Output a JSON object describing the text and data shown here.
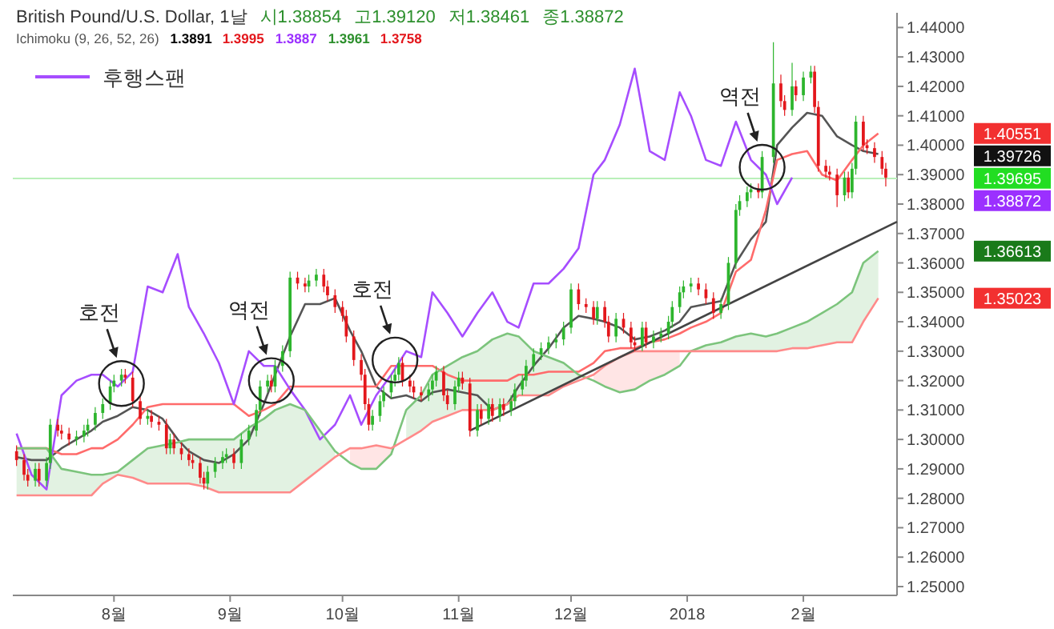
{
  "chart_data": {
    "type": "candlestick",
    "title": "British Pound/U.S. Dollar, 1날",
    "subtitle": "Ichimoku (9, 26, 52, 26)",
    "x": [
      "2017-07-06",
      "2017-07-08",
      "2017-07-09",
      "2017-07-11",
      "2017-07-12",
      "2017-07-14",
      "2017-07-15",
      "2017-07-17",
      "2017-07-18",
      "2017-07-20",
      "2017-07-22",
      "2017-07-24",
      "2017-07-25",
      "2017-07-27",
      "2017-07-29",
      "2017-07-31",
      "2017-08-01",
      "2017-08-03",
      "2017-08-04",
      "2017-08-06",
      "2017-08-08",
      "2017-08-10",
      "2017-08-11",
      "2017-08-13",
      "2017-08-15",
      "2017-08-16",
      "2017-08-17",
      "2017-08-19",
      "2017-08-21",
      "2017-08-22",
      "2017-08-24",
      "2017-08-25",
      "2017-08-26",
      "2017-08-28",
      "2017-08-30",
      "2017-08-31",
      "2017-09-02",
      "2017-09-04",
      "2017-09-06",
      "2017-09-08",
      "2017-09-09",
      "2017-09-11",
      "2017-09-12",
      "2017-09-13",
      "2017-09-15",
      "2017-09-17",
      "2017-09-19",
      "2017-09-21",
      "2017-09-22",
      "2017-09-24",
      "2017-09-26",
      "2017-09-27",
      "2017-09-29",
      "2017-10-01",
      "2017-10-02",
      "2017-10-04",
      "2017-10-06",
      "2017-10-07",
      "2017-10-08",
      "2017-10-09",
      "2017-10-11",
      "2017-10-12",
      "2017-10-14",
      "2017-10-15",
      "2017-10-16",
      "2017-10-17",
      "2017-10-19",
      "2017-10-20",
      "2017-10-22",
      "2017-10-24",
      "2017-10-25",
      "2017-10-26",
      "2017-10-28",
      "2017-10-29",
      "2017-10-31",
      "2017-11-01",
      "2017-11-02",
      "2017-11-04",
      "2017-11-06",
      "2017-11-07",
      "2017-11-09",
      "2017-11-10",
      "2017-11-12",
      "2017-11-13",
      "2017-11-15",
      "2017-11-16",
      "2017-11-18",
      "2017-11-19",
      "2017-11-21",
      "2017-11-23",
      "2017-11-25",
      "2017-11-27",
      "2017-11-29",
      "2017-12-01",
      "2017-12-03",
      "2017-12-05",
      "2017-12-07",
      "2017-12-08",
      "2017-12-10",
      "2017-12-11",
      "2017-12-13",
      "2017-12-15",
      "2017-12-17",
      "2017-12-18",
      "2017-12-20",
      "2017-12-21",
      "2017-12-23",
      "2017-12-25",
      "2017-12-27",
      "2017-12-28",
      "2017-12-30",
      "2017-12-31",
      "2018-01-02",
      "2018-01-04",
      "2018-01-06",
      "2018-01-08",
      "2018-01-10",
      "2018-01-12",
      "2018-01-14",
      "2018-01-15",
      "2018-01-17",
      "2018-01-18",
      "2018-01-20",
      "2018-01-21",
      "2018-01-24",
      "2018-01-26",
      "2018-01-27",
      "2018-01-29",
      "2018-01-30",
      "2018-02-01",
      "2018-02-03",
      "2018-02-04",
      "2018-02-05",
      "2018-02-07",
      "2018-02-08",
      "2018-02-10",
      "2018-02-12",
      "2018-02-13",
      "2018-02-14",
      "2018-02-15",
      "2018-02-17",
      "2018-02-18",
      "2018-02-20",
      "2018-02-22",
      "2018-02-23"
    ],
    "ohlc": [
      [
        1.296,
        1.298,
        1.291,
        1.293
      ],
      [
        1.293,
        1.295,
        1.286,
        1.288
      ],
      [
        1.288,
        1.29,
        1.284,
        1.286
      ],
      [
        1.286,
        1.292,
        1.284,
        1.29
      ],
      [
        1.29,
        1.292,
        1.284,
        1.286
      ],
      [
        1.286,
        1.294,
        1.284,
        1.292
      ],
      [
        1.292,
        1.307,
        1.29,
        1.305
      ],
      [
        1.305,
        1.307,
        1.301,
        1.303
      ],
      [
        1.303,
        1.305,
        1.3,
        1.302
      ],
      [
        1.302,
        1.304,
        1.298,
        1.3
      ],
      [
        1.3,
        1.303,
        1.298,
        1.301
      ],
      [
        1.301,
        1.305,
        1.299,
        1.303
      ],
      [
        1.303,
        1.307,
        1.301,
        1.305
      ],
      [
        1.305,
        1.311,
        1.303,
        1.309
      ],
      [
        1.309,
        1.314,
        1.307,
        1.312
      ],
      [
        1.312,
        1.32,
        1.31,
        1.318
      ],
      [
        1.318,
        1.322,
        1.316,
        1.32
      ],
      [
        1.32,
        1.324,
        1.318,
        1.322
      ],
      [
        1.322,
        1.324,
        1.319,
        1.321
      ],
      [
        1.321,
        1.323,
        1.311,
        1.313
      ],
      [
        1.313,
        1.315,
        1.305,
        1.307
      ],
      [
        1.307,
        1.31,
        1.305,
        1.308
      ],
      [
        1.308,
        1.31,
        1.304,
        1.306
      ],
      [
        1.306,
        1.308,
        1.303,
        1.305
      ],
      [
        1.305,
        1.307,
        1.295,
        1.297
      ],
      [
        1.297,
        1.302,
        1.295,
        1.3
      ],
      [
        1.3,
        1.302,
        1.295,
        1.297
      ],
      [
        1.297,
        1.299,
        1.293,
        1.295
      ],
      [
        1.295,
        1.297,
        1.291,
        1.293
      ],
      [
        1.293,
        1.295,
        1.29,
        1.292
      ],
      [
        1.292,
        1.294,
        1.285,
        1.287
      ],
      [
        1.287,
        1.289,
        1.283,
        1.285
      ],
      [
        1.285,
        1.291,
        1.283,
        1.289
      ],
      [
        1.289,
        1.294,
        1.287,
        1.292
      ],
      [
        1.292,
        1.296,
        1.29,
        1.294
      ],
      [
        1.294,
        1.297,
        1.292,
        1.295
      ],
      [
        1.295,
        1.297,
        1.29,
        1.292
      ],
      [
        1.292,
        1.302,
        1.29,
        1.3
      ],
      [
        1.3,
        1.305,
        1.298,
        1.303
      ],
      [
        1.303,
        1.312,
        1.301,
        1.31
      ],
      [
        1.31,
        1.32,
        1.308,
        1.318
      ],
      [
        1.318,
        1.322,
        1.316,
        1.32
      ],
      [
        1.32,
        1.322,
        1.316,
        1.318
      ],
      [
        1.318,
        1.327,
        1.316,
        1.325
      ],
      [
        1.325,
        1.332,
        1.323,
        1.33
      ],
      [
        1.33,
        1.357,
        1.328,
        1.355
      ],
      [
        1.355,
        1.357,
        1.351,
        1.353
      ],
      [
        1.353,
        1.355,
        1.35,
        1.352
      ],
      [
        1.352,
        1.356,
        1.35,
        1.354
      ],
      [
        1.354,
        1.358,
        1.352,
        1.356
      ],
      [
        1.356,
        1.358,
        1.35,
        1.352
      ],
      [
        1.352,
        1.354,
        1.347,
        1.349
      ],
      [
        1.349,
        1.351,
        1.343,
        1.345
      ],
      [
        1.345,
        1.347,
        1.34,
        1.342
      ],
      [
        1.342,
        1.344,
        1.333,
        1.335
      ],
      [
        1.335,
        1.337,
        1.325,
        1.327
      ],
      [
        1.327,
        1.329,
        1.32,
        1.322
      ],
      [
        1.322,
        1.324,
        1.31,
        1.312
      ],
      [
        1.312,
        1.314,
        1.303,
        1.305
      ],
      [
        1.305,
        1.31,
        1.303,
        1.308
      ],
      [
        1.308,
        1.315,
        1.306,
        1.313
      ],
      [
        1.313,
        1.318,
        1.311,
        1.316
      ],
      [
        1.316,
        1.322,
        1.314,
        1.32
      ],
      [
        1.32,
        1.324,
        1.318,
        1.322
      ],
      [
        1.322,
        1.328,
        1.32,
        1.326
      ],
      [
        1.326,
        1.328,
        1.318,
        1.32
      ],
      [
        1.32,
        1.322,
        1.316,
        1.318
      ],
      [
        1.318,
        1.32,
        1.314,
        1.316
      ],
      [
        1.316,
        1.318,
        1.313,
        1.315
      ],
      [
        1.315,
        1.319,
        1.313,
        1.317
      ],
      [
        1.317,
        1.322,
        1.315,
        1.32
      ],
      [
        1.32,
        1.325,
        1.318,
        1.323
      ],
      [
        1.323,
        1.325,
        1.313,
        1.315
      ],
      [
        1.315,
        1.317,
        1.31,
        1.312
      ],
      [
        1.312,
        1.32,
        1.31,
        1.318
      ],
      [
        1.318,
        1.323,
        1.316,
        1.321
      ],
      [
        1.321,
        1.323,
        1.317,
        1.319
      ],
      [
        1.319,
        1.321,
        1.301,
        1.303
      ],
      [
        1.303,
        1.312,
        1.301,
        1.31
      ],
      [
        1.31,
        1.312,
        1.305,
        1.307
      ],
      [
        1.307,
        1.314,
        1.305,
        1.312
      ],
      [
        1.312,
        1.314,
        1.306,
        1.308
      ],
      [
        1.308,
        1.314,
        1.306,
        1.312
      ],
      [
        1.312,
        1.314,
        1.308,
        1.31
      ],
      [
        1.31,
        1.315,
        1.308,
        1.313
      ],
      [
        1.313,
        1.319,
        1.311,
        1.317
      ],
      [
        1.317,
        1.322,
        1.315,
        1.32
      ],
      [
        1.32,
        1.327,
        1.318,
        1.325
      ],
      [
        1.325,
        1.331,
        1.323,
        1.329
      ],
      [
        1.329,
        1.333,
        1.327,
        1.331
      ],
      [
        1.331,
        1.335,
        1.329,
        1.333
      ],
      [
        1.333,
        1.336,
        1.331,
        1.334
      ],
      [
        1.334,
        1.34,
        1.332,
        1.338
      ],
      [
        1.338,
        1.353,
        1.336,
        1.351
      ],
      [
        1.351,
        1.353,
        1.344,
        1.346
      ],
      [
        1.346,
        1.348,
        1.343,
        1.345
      ],
      [
        1.345,
        1.347,
        1.339,
        1.341
      ],
      [
        1.341,
        1.347,
        1.339,
        1.345
      ],
      [
        1.345,
        1.347,
        1.338,
        1.34
      ],
      [
        1.34,
        1.342,
        1.333,
        1.335
      ],
      [
        1.335,
        1.343,
        1.333,
        1.341
      ],
      [
        1.341,
        1.343,
        1.336,
        1.338
      ],
      [
        1.338,
        1.34,
        1.331,
        1.333
      ],
      [
        1.333,
        1.335,
        1.33,
        1.332
      ],
      [
        1.332,
        1.34,
        1.33,
        1.338
      ],
      [
        1.338,
        1.34,
        1.331,
        1.333
      ],
      [
        1.333,
        1.337,
        1.331,
        1.335
      ],
      [
        1.335,
        1.338,
        1.333,
        1.336
      ],
      [
        1.336,
        1.342,
        1.334,
        1.34
      ],
      [
        1.34,
        1.347,
        1.338,
        1.345
      ],
      [
        1.345,
        1.352,
        1.343,
        1.35
      ],
      [
        1.35,
        1.354,
        1.348,
        1.352
      ],
      [
        1.352,
        1.355,
        1.35,
        1.353
      ],
      [
        1.353,
        1.355,
        1.349,
        1.351
      ],
      [
        1.351,
        1.353,
        1.346,
        1.348
      ],
      [
        1.348,
        1.35,
        1.341,
        1.343
      ],
      [
        1.343,
        1.348,
        1.341,
        1.346
      ],
      [
        1.346,
        1.362,
        1.344,
        1.36
      ],
      [
        1.36,
        1.38,
        1.358,
        1.378
      ],
      [
        1.378,
        1.383,
        1.376,
        1.381
      ],
      [
        1.381,
        1.386,
        1.379,
        1.384
      ],
      [
        1.384,
        1.387,
        1.382,
        1.385
      ],
      [
        1.385,
        1.387,
        1.382,
        1.384
      ],
      [
        1.384,
        1.398,
        1.382,
        1.396
      ],
      [
        1.396,
        1.435,
        1.394,
        1.421
      ],
      [
        1.421,
        1.424,
        1.413,
        1.415
      ],
      [
        1.415,
        1.417,
        1.41,
        1.412
      ],
      [
        1.412,
        1.428,
        1.41,
        1.42
      ],
      [
        1.42,
        1.422,
        1.415,
        1.417
      ],
      [
        1.417,
        1.425,
        1.415,
        1.423
      ],
      [
        1.423,
        1.427,
        1.421,
        1.425
      ],
      [
        1.425,
        1.427,
        1.411,
        1.413
      ],
      [
        1.413,
        1.415,
        1.391,
        1.393
      ],
      [
        1.393,
        1.395,
        1.389,
        1.391
      ],
      [
        1.391,
        1.393,
        1.388,
        1.39
      ],
      [
        1.39,
        1.392,
        1.379,
        1.383
      ],
      [
        1.383,
        1.391,
        1.381,
        1.389
      ],
      [
        1.389,
        1.391,
        1.382,
        1.384
      ],
      [
        1.384,
        1.394,
        1.382,
        1.392
      ],
      [
        1.392,
        1.41,
        1.39,
        1.408
      ],
      [
        1.408,
        1.41,
        1.398,
        1.4
      ],
      [
        1.4,
        1.402,
        1.397,
        1.399
      ],
      [
        1.399,
        1.401,
        1.394,
        1.396
      ],
      [
        1.396,
        1.398,
        1.39,
        1.392
      ],
      [
        1.392,
        1.394,
        1.386,
        1.389
      ]
    ],
    "series": [
      {
        "type": "line",
        "color": "#555555",
        "x": [
          "2017-07-06",
          "2017-07-10",
          "2017-07-14",
          "2017-07-18",
          "2017-07-22",
          "2017-07-26",
          "2017-07-29",
          "2017-08-02",
          "2017-08-06",
          "2017-08-10",
          "2017-08-14",
          "2017-08-18",
          "2017-08-21",
          "2017-08-25",
          "2017-08-29",
          "2017-09-02",
          "2017-09-06",
          "2017-09-10",
          "2017-09-13",
          "2017-09-17",
          "2017-09-21",
          "2017-09-25",
          "2017-09-29",
          "2017-10-03",
          "2017-10-06",
          "2017-10-10",
          "2017-10-14",
          "2017-10-18",
          "2017-10-22",
          "2017-10-25",
          "2017-10-29",
          "2017-11-02",
          "2017-11-06",
          "2017-11-10",
          "2017-11-14",
          "2017-11-17",
          "2017-11-21",
          "2017-11-25",
          "2017-11-29",
          "2017-12-03",
          "2017-12-07",
          "2017-12-10",
          "2017-12-14",
          "2017-12-18",
          "2017-12-22",
          "2017-12-26",
          "2017-12-30",
          "2018-01-02",
          "2018-01-06",
          "2018-01-10",
          "2018-01-14",
          "2018-01-18",
          "2018-01-22",
          "2018-01-25",
          "2018-01-29",
          "2018-02-02",
          "2018-02-06",
          "2018-02-10",
          "2018-02-14",
          "2018-02-17",
          "2018-02-21"
        ],
        "values": [
          1.294,
          1.293,
          1.293,
          1.297,
          1.3,
          1.303,
          1.306,
          1.308,
          1.311,
          1.31,
          1.307,
          1.3,
          1.296,
          1.293,
          1.292,
          1.295,
          1.3,
          1.312,
          1.322,
          1.335,
          1.346,
          1.346,
          1.348,
          1.337,
          1.33,
          1.318,
          1.314,
          1.315,
          1.313,
          1.316,
          1.317,
          1.316,
          1.315,
          1.31,
          1.312,
          1.318,
          1.325,
          1.331,
          1.338,
          1.342,
          1.341,
          1.34,
          1.338,
          1.334,
          1.335,
          1.337,
          1.34,
          1.345,
          1.346,
          1.347,
          1.36,
          1.368,
          1.374,
          1.4,
          1.406,
          1.411,
          1.41,
          1.403,
          1.4,
          1.398,
          1.397
        ]
      },
      {
        "type": "line",
        "color": "#ff6b6b",
        "x": [
          "2017-07-06",
          "2017-07-10",
          "2017-07-14",
          "2017-07-18",
          "2017-07-22",
          "2017-07-26",
          "2017-07-29",
          "2017-08-02",
          "2017-08-06",
          "2017-08-10",
          "2017-08-14",
          "2017-08-18",
          "2017-08-21",
          "2017-08-25",
          "2017-08-29",
          "2017-09-02",
          "2017-09-06",
          "2017-09-10",
          "2017-09-13",
          "2017-09-17",
          "2017-09-21",
          "2017-09-25",
          "2017-09-29",
          "2017-10-03",
          "2017-10-06",
          "2017-10-10",
          "2017-10-14",
          "2017-10-18",
          "2017-10-22",
          "2017-10-25",
          "2017-10-29",
          "2017-11-02",
          "2017-11-06",
          "2017-11-10",
          "2017-11-14",
          "2017-11-17",
          "2017-11-21",
          "2017-11-25",
          "2017-11-29",
          "2017-12-03",
          "2017-12-07",
          "2017-12-10",
          "2017-12-14",
          "2017-12-18",
          "2017-12-22",
          "2017-12-26",
          "2017-12-30",
          "2018-01-02",
          "2018-01-06",
          "2018-01-10",
          "2018-01-14",
          "2018-01-18",
          "2018-01-22",
          "2018-01-25",
          "2018-01-29",
          "2018-02-02",
          "2018-02-06",
          "2018-02-10",
          "2018-02-14",
          "2018-02-17",
          "2018-02-21"
        ],
        "values": [
          1.297,
          1.297,
          1.297,
          1.295,
          1.295,
          1.297,
          1.297,
          1.3,
          1.305,
          1.311,
          1.312,
          1.312,
          1.312,
          1.312,
          1.312,
          1.312,
          1.308,
          1.31,
          1.312,
          1.318,
          1.318,
          1.318,
          1.318,
          1.318,
          1.318,
          1.318,
          1.325,
          1.325,
          1.325,
          1.325,
          1.322,
          1.32,
          1.32,
          1.32,
          1.32,
          1.322,
          1.322,
          1.323,
          1.323,
          1.323,
          1.326,
          1.33,
          1.331,
          1.331,
          1.333,
          1.334,
          1.336,
          1.338,
          1.34,
          1.343,
          1.357,
          1.361,
          1.378,
          1.395,
          1.397,
          1.398,
          1.39,
          1.388,
          1.395,
          1.4,
          1.404
        ]
      },
      {
        "type": "line",
        "name": "후행스팬",
        "color": "#a64dff",
        "x": [
          "2017-07-06",
          "2017-07-10",
          "2017-07-14",
          "2017-07-18",
          "2017-07-22",
          "2017-07-26",
          "2017-07-29",
          "2017-08-02",
          "2017-08-06",
          "2017-08-10",
          "2017-08-14",
          "2017-08-18",
          "2017-08-21",
          "2017-08-25",
          "2017-08-29",
          "2017-09-02",
          "2017-09-06",
          "2017-09-10",
          "2017-09-13",
          "2017-09-17",
          "2017-09-21",
          "2017-09-25",
          "2017-09-29",
          "2017-10-03",
          "2017-10-06",
          "2017-10-10",
          "2017-10-14",
          "2017-10-18",
          "2017-10-22",
          "2017-10-25",
          "2017-10-29",
          "2017-11-02",
          "2017-11-06",
          "2017-11-10",
          "2017-11-14",
          "2017-11-17",
          "2017-11-21",
          "2017-11-25",
          "2017-11-29",
          "2017-12-03",
          "2017-12-07",
          "2017-12-10",
          "2017-12-14",
          "2017-12-18",
          "2017-12-22",
          "2017-12-26",
          "2017-12-30",
          "2018-01-02",
          "2018-01-06",
          "2018-01-10",
          "2018-01-14",
          "2018-01-18",
          "2018-01-22",
          "2018-01-25",
          "2018-01-29"
        ],
        "values": [
          1.302,
          1.288,
          1.283,
          1.315,
          1.32,
          1.322,
          1.322,
          1.318,
          1.323,
          1.352,
          1.35,
          1.363,
          1.345,
          1.336,
          1.326,
          1.312,
          1.33,
          1.325,
          1.325,
          1.317,
          1.31,
          1.3,
          1.305,
          1.315,
          1.305,
          1.315,
          1.322,
          1.33,
          1.328,
          1.35,
          1.343,
          1.335,
          1.343,
          1.35,
          1.34,
          1.338,
          1.353,
          1.353,
          1.358,
          1.365,
          1.39,
          1.395,
          1.407,
          1.426,
          1.398,
          1.395,
          1.418,
          1.41,
          1.395,
          1.393,
          1.408,
          1.395,
          1.39,
          1.38,
          1.389
        ]
      },
      {
        "type": "line",
        "color": "#7cc47c",
        "lower": [
          1.281,
          1.281,
          1.281,
          1.281,
          1.281,
          1.281,
          1.285,
          1.288,
          1.287,
          1.285,
          1.285,
          1.285,
          1.285,
          1.284,
          1.282,
          1.282,
          1.282,
          1.282,
          1.282,
          1.282,
          1.286,
          1.29,
          1.294,
          null,
          null,
          null,
          null,
          1.3,
          1.303,
          1.306,
          1.308,
          1.31,
          1.31,
          1.31,
          1.312,
          1.315,
          1.315,
          1.315,
          1.318,
          1.32,
          null,
          null,
          null,
          null,
          null,
          null,
          null,
          1.33,
          1.33,
          1.33,
          1.33,
          1.33,
          1.33,
          1.33,
          1.331,
          1.331,
          1.332,
          1.333,
          1.333,
          1.34,
          1.348
        ],
        "upper": [
          1.297,
          1.297,
          1.297,
          1.29,
          1.289,
          1.288,
          1.288,
          1.289,
          1.293,
          1.297,
          1.298,
          1.299,
          1.3,
          1.3,
          1.3,
          1.3,
          1.304,
          1.307,
          1.31,
          1.312,
          1.31,
          1.303,
          1.296,
          null,
          null,
          null,
          null,
          1.31,
          1.315,
          1.322,
          1.325,
          1.328,
          1.33,
          1.334,
          1.336,
          1.335,
          1.33,
          1.328,
          1.326,
          1.322,
          null,
          null,
          null,
          null,
          null,
          null,
          null,
          1.33,
          1.332,
          1.333,
          1.335,
          1.336,
          1.335,
          1.336,
          1.338,
          1.34,
          1.343,
          1.346,
          1.35,
          1.36,
          1.364
        ],
        "x": [
          "2017-07-06",
          "2017-07-10",
          "2017-07-14",
          "2017-07-18",
          "2017-07-22",
          "2017-07-26",
          "2017-07-29",
          "2017-08-02",
          "2017-08-06",
          "2017-08-10",
          "2017-08-14",
          "2017-08-18",
          "2017-08-21",
          "2017-08-25",
          "2017-08-29",
          "2017-09-02",
          "2017-09-06",
          "2017-09-10",
          "2017-09-13",
          "2017-09-17",
          "2017-09-21",
          "2017-09-25",
          "2017-09-29",
          "2017-10-03",
          "2017-10-06",
          "2017-10-10",
          "2017-10-14",
          "2017-10-18",
          "2017-10-22",
          "2017-10-25",
          "2017-10-29",
          "2017-11-02",
          "2017-11-06",
          "2017-11-10",
          "2017-11-14",
          "2017-11-17",
          "2017-11-21",
          "2017-11-25",
          "2017-11-29",
          "2017-12-03",
          "2017-12-07",
          "2017-12-10",
          "2017-12-14",
          "2017-12-18",
          "2017-12-22",
          "2017-12-26",
          "2017-12-30",
          "2018-01-02",
          "2018-01-06",
          "2018-01-10",
          "2018-01-14",
          "2018-01-18",
          "2018-01-22",
          "2018-01-25",
          "2018-01-29",
          "2018-02-02",
          "2018-02-06",
          "2018-02-10",
          "2018-02-14",
          "2018-02-17",
          "2018-02-21"
        ],
        "values": [
          1.297,
          1.297,
          1.297,
          1.29,
          1.289,
          1.288,
          1.288,
          1.289,
          1.293,
          1.297,
          1.298,
          1.299,
          1.3,
          1.3,
          1.3,
          1.3,
          1.304,
          1.307,
          1.31,
          1.312,
          1.31,
          1.303,
          1.296,
          1.292,
          1.29,
          1.29,
          1.295,
          1.31,
          1.315,
          1.322,
          1.325,
          1.328,
          1.33,
          1.334,
          1.336,
          1.335,
          1.33,
          1.328,
          1.326,
          1.322,
          1.32,
          1.318,
          1.316,
          1.317,
          1.32,
          1.322,
          1.325,
          1.33,
          1.332,
          1.333,
          1.335,
          1.336,
          1.335,
          1.336,
          1.338,
          1.34,
          1.343,
          1.346,
          1.35,
          1.36,
          1.364
        ]
      },
      {
        "type": "line",
        "color": "#ff8a8a",
        "lower": [
          null,
          null,
          null,
          null,
          null,
          null,
          null,
          null,
          null,
          null,
          null,
          null,
          null,
          null,
          null,
          null,
          null,
          null,
          null,
          null,
          null,
          null,
          null,
          1.292,
          1.29,
          1.29,
          1.295,
          null,
          null,
          null,
          null,
          null,
          null,
          null,
          null,
          null,
          null,
          null,
          null,
          null,
          1.32,
          1.318,
          1.316,
          1.317,
          1.32,
          1.322,
          1.325,
          null,
          null,
          null,
          null,
          null,
          null,
          null,
          null,
          null,
          null,
          null,
          null,
          null,
          null
        ],
        "upper": [
          null,
          null,
          null,
          null,
          null,
          null,
          null,
          null,
          null,
          null,
          null,
          null,
          null,
          null,
          null,
          null,
          null,
          null,
          null,
          null,
          null,
          null,
          null,
          1.297,
          1.297,
          1.298,
          1.297,
          null,
          null,
          null,
          null,
          null,
          null,
          null,
          null,
          null,
          null,
          null,
          null,
          null,
          1.322,
          1.325,
          1.328,
          1.33,
          1.33,
          1.33,
          1.33,
          null,
          null,
          null,
          null,
          null,
          null,
          null,
          null,
          null,
          null,
          null,
          null,
          null,
          null
        ],
        "x": [
          "2017-07-06",
          "2017-07-10",
          "2017-07-14",
          "2017-07-18",
          "2017-07-22",
          "2017-07-26",
          "2017-07-29",
          "2017-08-02",
          "2017-08-06",
          "2017-08-10",
          "2017-08-14",
          "2017-08-18",
          "2017-08-21",
          "2017-08-25",
          "2017-08-29",
          "2017-09-02",
          "2017-09-06",
          "2017-09-10",
          "2017-09-13",
          "2017-09-17",
          "2017-09-21",
          "2017-09-25",
          "2017-09-29",
          "2017-10-03",
          "2017-10-06",
          "2017-10-10",
          "2017-10-14",
          "2017-10-18",
          "2017-10-22",
          "2017-10-25",
          "2017-10-29",
          "2017-11-02",
          "2017-11-06",
          "2017-11-10",
          "2017-11-14",
          "2017-11-17",
          "2017-11-21",
          "2017-11-25",
          "2017-11-29",
          "2017-12-03",
          "2017-12-07",
          "2017-12-10",
          "2017-12-14",
          "2017-12-18",
          "2017-12-22",
          "2017-12-26",
          "2017-12-30",
          "2018-01-02",
          "2018-01-06",
          "2018-01-10",
          "2018-01-14",
          "2018-01-18",
          "2018-01-22",
          "2018-01-25",
          "2018-01-29",
          "2018-02-02",
          "2018-02-06",
          "2018-02-10",
          "2018-02-14",
          "2018-02-17",
          "2018-02-21"
        ],
        "values": [
          1.281,
          1.281,
          1.281,
          1.281,
          1.281,
          1.281,
          1.285,
          1.288,
          1.287,
          1.285,
          1.285,
          1.285,
          1.285,
          1.284,
          1.282,
          1.282,
          1.282,
          1.282,
          1.282,
          1.282,
          1.286,
          1.29,
          1.294,
          1.297,
          1.297,
          1.298,
          1.297,
          1.3,
          1.303,
          1.306,
          1.308,
          1.31,
          1.31,
          1.31,
          1.312,
          1.315,
          1.315,
          1.315,
          1.318,
          1.32,
          1.322,
          1.325,
          1.328,
          1.33,
          1.33,
          1.33,
          1.33,
          1.33,
          1.33,
          1.33,
          1.33,
          1.33,
          1.33,
          1.33,
          1.331,
          1.331,
          1.332,
          1.333,
          1.333,
          1.34,
          1.348
        ]
      },
      {
        "type": "line",
        "color": "#444444",
        "x": [
          "2017-11-04",
          "2018-02-26"
        ],
        "values": [
          1.303,
          1.374
        ]
      }
    ],
    "xlim": [
      "2017-07-05",
      "2018-02-26"
    ],
    "ylim": [
      1.247,
      1.445
    ],
    "xticks": [
      {
        "value": "2017-08-01",
        "label": "8월"
      },
      {
        "value": "2017-09-01",
        "label": "9월"
      },
      {
        "value": "2017-10-01",
        "label": "10월"
      },
      {
        "value": "2017-11-01",
        "label": "11월"
      },
      {
        "value": "2017-12-01",
        "label": "12월"
      },
      {
        "value": "2018-01-01",
        "label": "2018"
      },
      {
        "value": "2018-02-01",
        "label": "2월"
      }
    ],
    "yticks": [
      {
        "value": 1.25,
        "label": "1.25000"
      },
      {
        "value": 1.26,
        "label": "1.26000"
      },
      {
        "value": 1.27,
        "label": "1.27000"
      },
      {
        "value": 1.28,
        "label": "1.28000"
      },
      {
        "value": 1.29,
        "label": "1.29000"
      },
      {
        "value": 1.3,
        "label": "1.30000"
      },
      {
        "value": 1.31,
        "label": "1.31000"
      },
      {
        "value": 1.32,
        "label": "1.32000"
      },
      {
        "value": 1.33,
        "label": "1.33000"
      },
      {
        "value": 1.34,
        "label": "1.34000"
      },
      {
        "value": 1.35,
        "label": "1.35000"
      },
      {
        "value": 1.36,
        "label": "1.36000"
      },
      {
        "value": 1.37,
        "label": "1.37000"
      },
      {
        "value": 1.38,
        "label": "1.38000"
      },
      {
        "value": 1.39,
        "label": "1.39000"
      },
      {
        "value": 1.4,
        "label": "1.40000"
      },
      {
        "value": 1.41,
        "label": "1.41000"
      },
      {
        "value": 1.42,
        "label": "1.42000"
      },
      {
        "value": 1.43,
        "label": "1.43000"
      },
      {
        "value": 1.44,
        "label": "1.44000"
      }
    ],
    "ref_lines": [
      {
        "axis": "y",
        "value": 1.38872,
        "color": "#b9f0b9"
      }
    ],
    "legend": "top left",
    "annotations": [
      "시1.38854",
      "고1.39120",
      "저1.38461",
      "종1.38872",
      "1.3891",
      "1.3995",
      "1.3887",
      "1.3961",
      "1.3758",
      {
        "text": "호전",
        "x": "2017-08-03",
        "y": 1.319
      },
      {
        "text": "역전",
        "x": "2017-09-12",
        "y": 1.32
      },
      {
        "text": "호전",
        "x": "2017-10-15",
        "y": 1.327
      },
      {
        "text": "역전",
        "x": "2018-01-21",
        "y": 1.3925
      },
      "1.40551",
      "1.39726",
      "1.39695",
      "1.38872",
      "1.36613",
      "1.35023"
    ]
  }
}
